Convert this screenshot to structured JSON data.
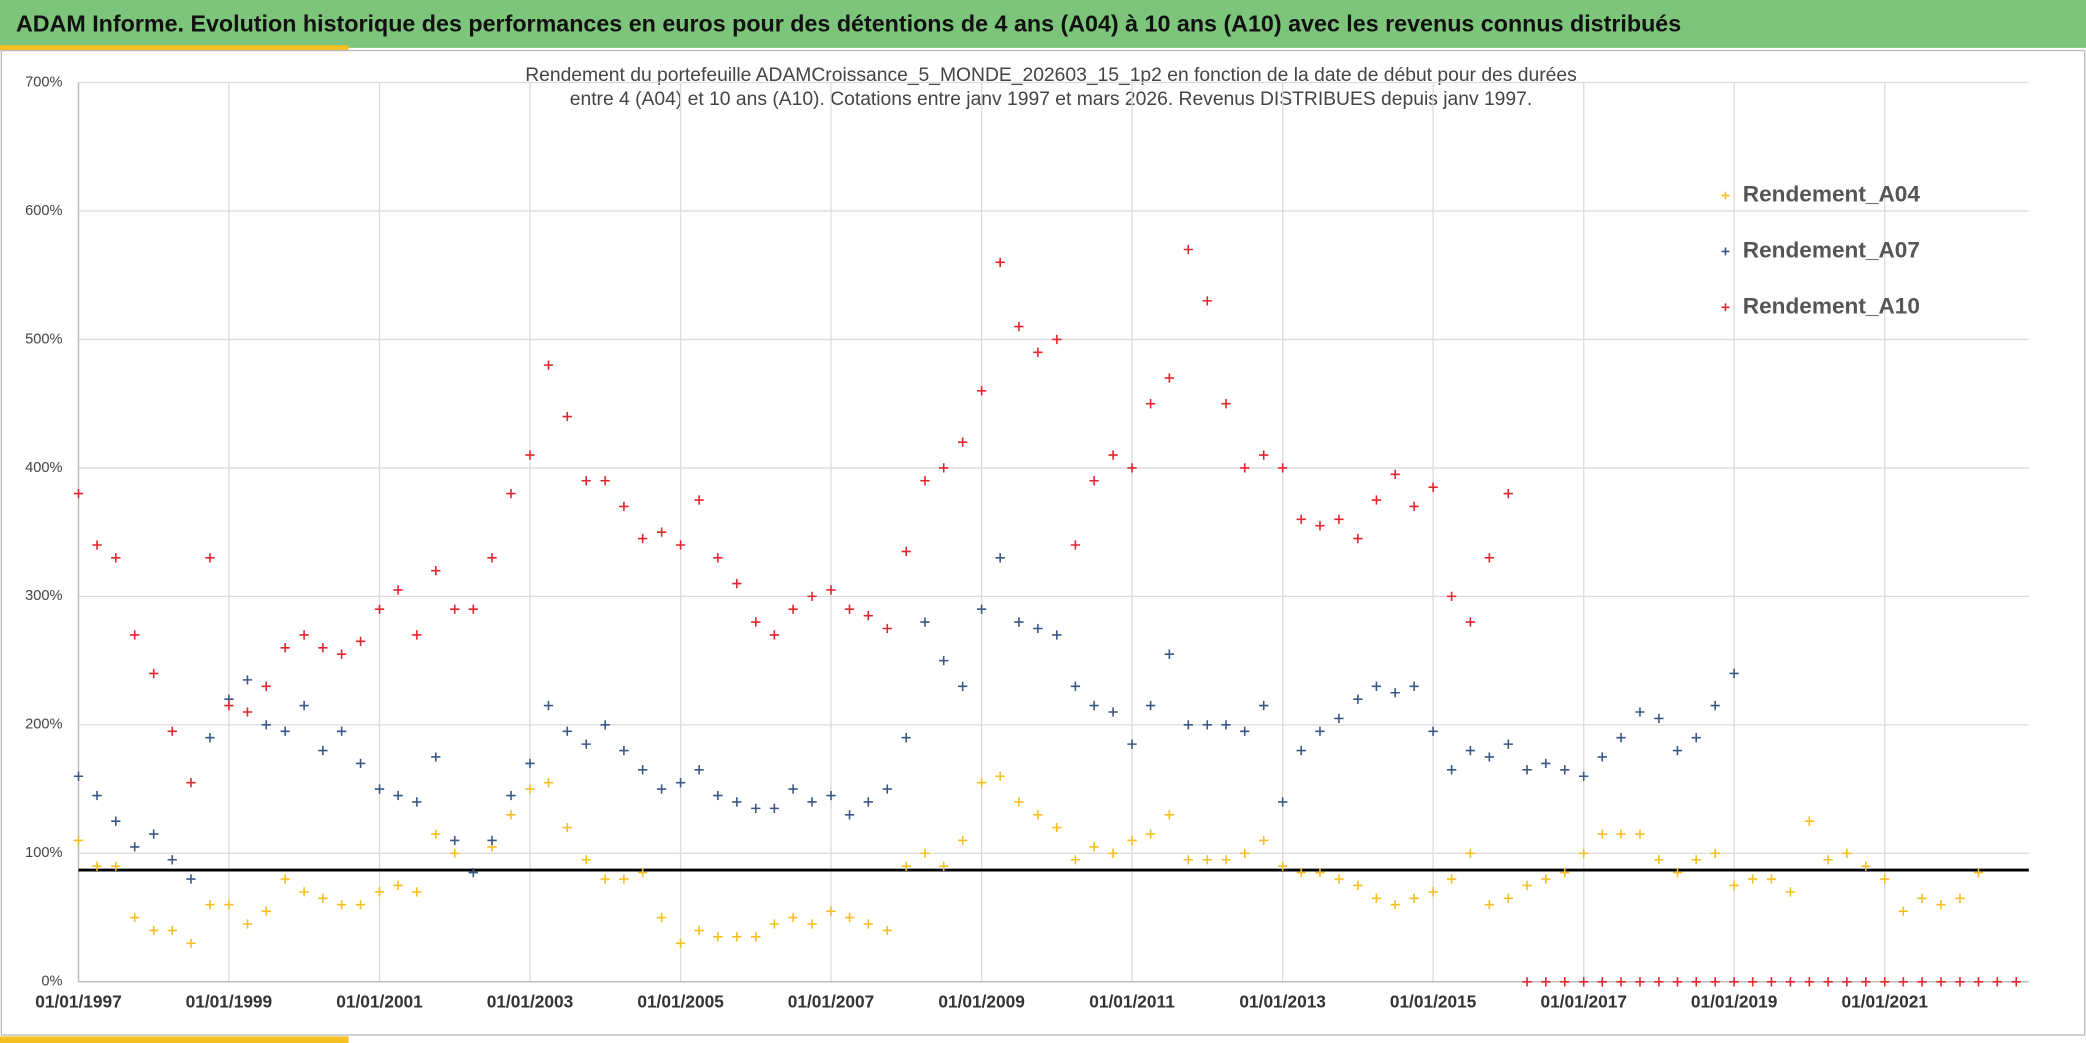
{
  "header": {
    "title": "ADAM Informe. Evolution historique des performances en euros pour des détentions de 4 ans (A04) à 10 ans (A10) avec les revenus connus distribués"
  },
  "chart_data": {
    "type": "scatter",
    "title_lines": [
      "Rendement du portefeuille ADAMCroissance_5_MONDE_202603_15_1p2  en fonction de la date de début pour des durées",
      "entre 4 (A04) et 10 ans (A10). Cotations entre janv 1997 et mars 2026. Revenus DISTRIBUES depuis janv 1997."
    ],
    "xlim": [
      "1997-01-01",
      "2022-12-01"
    ],
    "xticks": [
      {
        "value": "1997-01-01",
        "label": "01/01/1997"
      },
      {
        "value": "1999-01-01",
        "label": "01/01/1999"
      },
      {
        "value": "2001-01-01",
        "label": "01/01/2001"
      },
      {
        "value": "2003-01-01",
        "label": "01/01/2003"
      },
      {
        "value": "2005-01-01",
        "label": "01/01/2005"
      },
      {
        "value": "2007-01-01",
        "label": "01/01/2007"
      },
      {
        "value": "2009-01-01",
        "label": "01/01/2009"
      },
      {
        "value": "2011-01-01",
        "label": "01/01/2011"
      },
      {
        "value": "2013-01-01",
        "label": "01/01/2013"
      },
      {
        "value": "2015-01-01",
        "label": "01/01/2015"
      },
      {
        "value": "2017-01-01",
        "label": "01/01/2017"
      },
      {
        "value": "2019-01-01",
        "label": "01/01/2019"
      },
      {
        "value": "2021-01-01",
        "label": "01/01/2021"
      }
    ],
    "ylim": [
      0,
      700
    ],
    "yticks": [
      {
        "value": 0,
        "label": "0%"
      },
      {
        "value": 100,
        "label": "100%"
      },
      {
        "value": 200,
        "label": "200%"
      },
      {
        "value": 300,
        "label": "300%"
      },
      {
        "value": 400,
        "label": "400%"
      },
      {
        "value": 500,
        "label": "500%"
      },
      {
        "value": 600,
        "label": "600%"
      },
      {
        "value": 700,
        "label": "700%"
      }
    ],
    "grid": true,
    "reference_line": 87,
    "legend": "right",
    "series": [
      {
        "name": "Rendement_A04",
        "color": "#f5c021",
        "x": [
          "1997-01-01",
          "1997-04-01",
          "1997-07-01",
          "1997-10-01",
          "1998-01-01",
          "1998-04-01",
          "1998-07-01",
          "1998-10-01",
          "1999-01-01",
          "1999-04-01",
          "1999-07-01",
          "1999-10-01",
          "2000-01-01",
          "2000-04-01",
          "2000-07-01",
          "2000-10-01",
          "2001-01-01",
          "2001-04-01",
          "2001-07-01",
          "2001-10-01",
          "2002-01-01",
          "2002-04-01",
          "2002-07-01",
          "2002-10-01",
          "2003-01-01",
          "2003-04-01",
          "2003-07-01",
          "2003-10-01",
          "2004-01-01",
          "2004-04-01",
          "2004-07-01",
          "2004-10-01",
          "2005-01-01",
          "2005-04-01",
          "2005-07-01",
          "2005-10-01",
          "2006-01-01",
          "2006-04-01",
          "2006-07-01",
          "2006-10-01",
          "2007-01-01",
          "2007-04-01",
          "2007-07-01",
          "2007-10-01",
          "2008-01-01",
          "2008-04-01",
          "2008-07-01",
          "2008-10-01",
          "2009-01-01",
          "2009-04-01",
          "2009-07-01",
          "2009-10-01",
          "2010-01-01",
          "2010-04-01",
          "2010-07-01",
          "2010-10-01",
          "2011-01-01",
          "2011-04-01",
          "2011-07-01",
          "2011-10-01",
          "2012-01-01",
          "2012-04-01",
          "2012-07-01",
          "2012-10-01",
          "2013-01-01",
          "2013-04-01",
          "2013-07-01",
          "2013-10-01",
          "2014-01-01",
          "2014-04-01",
          "2014-07-01",
          "2014-10-01",
          "2015-01-01",
          "2015-04-01",
          "2015-07-01",
          "2015-10-01",
          "2016-01-01",
          "2016-04-01",
          "2016-07-01",
          "2016-10-01",
          "2017-01-01",
          "2017-04-01",
          "2017-07-01",
          "2017-10-01",
          "2018-01-01",
          "2018-04-01",
          "2018-07-01",
          "2018-10-01",
          "2019-01-01",
          "2019-04-01",
          "2019-07-01",
          "2019-10-01",
          "2020-01-01",
          "2020-04-01",
          "2020-07-01",
          "2020-10-01",
          "2021-01-01",
          "2021-04-01",
          "2021-07-01",
          "2021-10-01",
          "2022-01-01",
          "2022-04-01"
        ],
        "values": [
          110,
          90,
          90,
          50,
          40,
          40,
          30,
          60,
          60,
          45,
          55,
          80,
          70,
          65,
          60,
          60,
          70,
          75,
          70,
          115,
          100,
          85,
          105,
          130,
          150,
          155,
          120,
          95,
          80,
          80,
          85,
          50,
          30,
          40,
          35,
          35,
          35,
          45,
          50,
          45,
          55,
          50,
          45,
          40,
          90,
          100,
          90,
          110,
          155,
          160,
          140,
          130,
          120,
          95,
          105,
          100,
          110,
          115,
          130,
          95,
          95,
          95,
          100,
          110,
          90,
          85,
          85,
          80,
          75,
          65,
          60,
          65,
          70,
          80,
          100,
          60,
          65,
          75,
          80,
          85,
          100,
          115,
          115,
          115,
          95,
          85,
          95,
          100,
          75,
          80,
          80,
          70,
          125,
          95,
          100,
          90,
          80,
          55,
          65,
          60,
          65,
          85
        ]
      },
      {
        "name": "Rendement_A07",
        "color": "#3b5787",
        "x": [
          "1997-01-01",
          "1997-04-01",
          "1997-07-01",
          "1997-10-01",
          "1998-01-01",
          "1998-04-01",
          "1998-07-01",
          "1998-10-01",
          "1999-01-01",
          "1999-04-01",
          "1999-07-01",
          "1999-10-01",
          "2000-01-01",
          "2000-04-01",
          "2000-07-01",
          "2000-10-01",
          "2001-01-01",
          "2001-04-01",
          "2001-07-01",
          "2001-10-01",
          "2002-01-01",
          "2002-04-01",
          "2002-07-01",
          "2002-10-01",
          "2003-01-01",
          "2003-04-01",
          "2003-07-01",
          "2003-10-01",
          "2004-01-01",
          "2004-04-01",
          "2004-07-01",
          "2004-10-01",
          "2005-01-01",
          "2005-04-01",
          "2005-07-01",
          "2005-10-01",
          "2006-01-01",
          "2006-04-01",
          "2006-07-01",
          "2006-10-01",
          "2007-01-01",
          "2007-04-01",
          "2007-07-01",
          "2007-10-01",
          "2008-01-01",
          "2008-04-01",
          "2008-07-01",
          "2008-10-01",
          "2009-01-01",
          "2009-04-01",
          "2009-07-01",
          "2009-10-01",
          "2010-01-01",
          "2010-04-01",
          "2010-07-01",
          "2010-10-01",
          "2011-01-01",
          "2011-04-01",
          "2011-07-01",
          "2011-10-01",
          "2012-01-01",
          "2012-04-01",
          "2012-07-01",
          "2012-10-01",
          "2013-01-01",
          "2013-04-01",
          "2013-07-01",
          "2013-10-01",
          "2014-01-01",
          "2014-04-01",
          "2014-07-01",
          "2014-10-01",
          "2015-01-01",
          "2015-04-01",
          "2015-07-01",
          "2015-10-01",
          "2016-01-01",
          "2016-04-01",
          "2016-07-01",
          "2016-10-01",
          "2017-01-01",
          "2017-04-01",
          "2017-07-01",
          "2017-10-01",
          "2018-01-01",
          "2018-04-01",
          "2018-07-01",
          "2018-10-01",
          "2019-01-01"
        ],
        "values": [
          160,
          145,
          125,
          105,
          115,
          95,
          80,
          190,
          220,
          235,
          200,
          195,
          215,
          180,
          195,
          170,
          150,
          145,
          140,
          175,
          110,
          85,
          110,
          145,
          170,
          215,
          195,
          185,
          200,
          180,
          165,
          150,
          155,
          165,
          145,
          140,
          135,
          135,
          150,
          140,
          145,
          130,
          140,
          150,
          190,
          280,
          250,
          230,
          290,
          330,
          280,
          275,
          270,
          230,
          215,
          210,
          185,
          215,
          255,
          200,
          200,
          200,
          195,
          215,
          140,
          180,
          195,
          205,
          220,
          230,
          225,
          230,
          195,
          165,
          180,
          175,
          185,
          165,
          170,
          165,
          160,
          175,
          190,
          210,
          205,
          180,
          190,
          215,
          240
        ]
      },
      {
        "name": "Rendement_A10",
        "color": "#e3262d",
        "x": [
          "1997-01-01",
          "1997-04-01",
          "1997-07-01",
          "1997-10-01",
          "1998-01-01",
          "1998-04-01",
          "1998-07-01",
          "1998-10-01",
          "1999-01-01",
          "1999-04-01",
          "1999-07-01",
          "1999-10-01",
          "2000-01-01",
          "2000-04-01",
          "2000-07-01",
          "2000-10-01",
          "2001-01-01",
          "2001-04-01",
          "2001-07-01",
          "2001-10-01",
          "2002-01-01",
          "2002-04-01",
          "2002-07-01",
          "2002-10-01",
          "2003-01-01",
          "2003-04-01",
          "2003-07-01",
          "2003-10-01",
          "2004-01-01",
          "2004-04-01",
          "2004-07-01",
          "2004-10-01",
          "2005-01-01",
          "2005-04-01",
          "2005-07-01",
          "2005-10-01",
          "2006-01-01",
          "2006-04-01",
          "2006-07-01",
          "2006-10-01",
          "2007-01-01",
          "2007-04-01",
          "2007-07-01",
          "2007-10-01",
          "2008-01-01",
          "2008-04-01",
          "2008-07-01",
          "2008-10-01",
          "2009-01-01",
          "2009-04-01",
          "2009-07-01",
          "2009-10-01",
          "2010-01-01",
          "2010-04-01",
          "2010-07-01",
          "2010-10-01",
          "2011-01-01",
          "2011-04-01",
          "2011-07-01",
          "2011-10-01",
          "2012-01-01",
          "2012-04-01",
          "2012-07-01",
          "2012-10-01",
          "2013-01-01",
          "2013-04-01",
          "2013-07-01",
          "2013-10-01",
          "2014-01-01",
          "2014-04-01",
          "2014-07-01",
          "2014-10-01",
          "2015-01-01",
          "2015-04-01",
          "2015-07-01",
          "2015-10-01",
          "2016-01-01",
          "2016-04-01",
          "2016-07-01",
          "2016-10-01",
          "2017-01-01",
          "2017-04-01",
          "2017-07-01",
          "2017-10-01",
          "2018-01-01",
          "2018-04-01",
          "2018-07-01",
          "2018-10-01",
          "2019-01-01",
          "2019-04-01",
          "2019-07-01",
          "2019-10-01",
          "2020-01-01",
          "2020-04-01",
          "2020-07-01",
          "2020-10-01",
          "2021-01-01",
          "2021-04-01",
          "2021-07-01",
          "2021-10-01",
          "2022-01-01",
          "2022-04-01",
          "2022-07-01",
          "2022-10-01"
        ],
        "values": [
          380,
          340,
          330,
          270,
          240,
          195,
          155,
          330,
          215,
          210,
          230,
          260,
          270,
          260,
          255,
          265,
          290,
          305,
          270,
          320,
          290,
          290,
          330,
          380,
          410,
          480,
          440,
          390,
          390,
          370,
          345,
          350,
          340,
          375,
          330,
          310,
          280,
          270,
          290,
          300,
          305,
          290,
          285,
          275,
          335,
          390,
          400,
          420,
          460,
          560,
          510,
          490,
          500,
          340,
          390,
          410,
          400,
          450,
          470,
          570,
          530,
          450,
          400,
          410,
          400,
          360,
          355,
          360,
          345,
          375,
          395,
          370,
          385,
          300,
          280,
          330,
          380,
          0,
          0,
          0,
          0,
          0,
          0,
          0,
          0,
          0,
          0,
          0,
          0,
          0,
          0,
          0,
          0,
          0,
          0,
          0,
          0,
          0,
          0,
          0,
          0,
          0,
          0,
          0
        ]
      }
    ]
  }
}
